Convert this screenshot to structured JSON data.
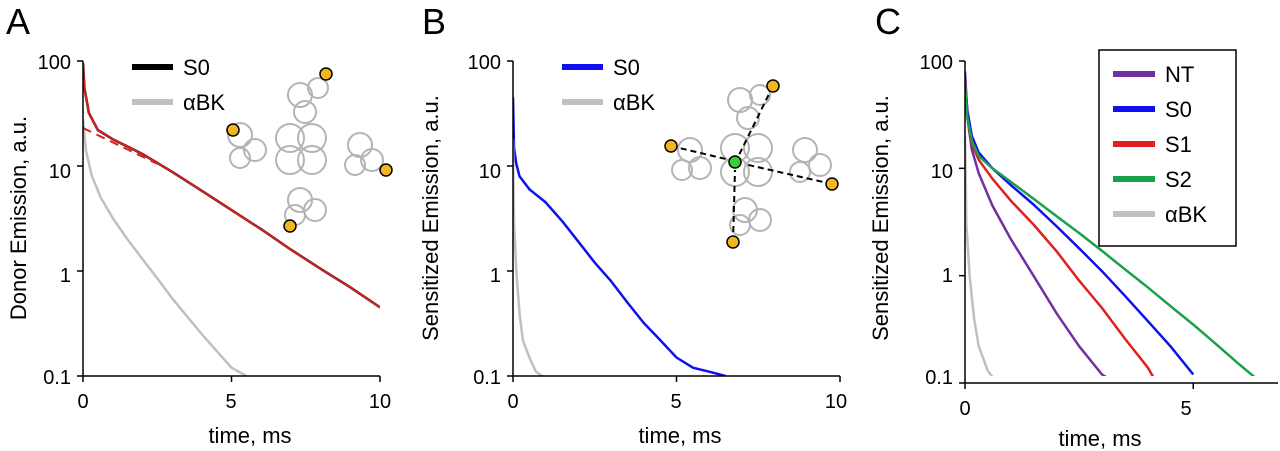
{
  "chart_data": [
    {
      "type": "line",
      "panel_label": "A",
      "xlabel": "time, ms",
      "ylabel": "Donor Emission, a.u.",
      "x_scale": "linear",
      "y_scale": "log",
      "xlim": [
        0,
        10
      ],
      "ylim": [
        0.1,
        100
      ],
      "x_ticks": [
        "0",
        "5",
        "10"
      ],
      "y_ticks": [
        "0.1",
        "1",
        "10",
        "100"
      ],
      "legend_position": "top",
      "series": [
        {
          "name": "S0",
          "color": "#000000",
          "x": [
            0,
            0.05,
            0.2,
            0.5,
            1,
            2,
            3,
            4,
            5,
            6,
            7,
            8,
            9,
            10
          ],
          "values": [
            95,
            55,
            32,
            22,
            18,
            13,
            8.8,
            5.8,
            3.8,
            2.5,
            1.6,
            1.05,
            0.7,
            0.45
          ]
        },
        {
          "name": "αBK",
          "color": "#c0c0c0",
          "x": [
            0,
            0.1,
            0.3,
            0.6,
            1,
            1.5,
            2,
            2.5,
            3,
            4,
            5,
            5.5
          ],
          "values": [
            28,
            14,
            8,
            5,
            3.2,
            2,
            1.3,
            0.85,
            0.55,
            0.25,
            0.12,
            0.1
          ]
        },
        {
          "name": "",
          "color": "#d62020",
          "style": "solid",
          "x": [
            0,
            0.05,
            0.2,
            0.5,
            1,
            2,
            3,
            4,
            5,
            6,
            7,
            8,
            9,
            10
          ],
          "values": [
            95,
            55,
            32,
            22,
            18,
            13,
            8.8,
            5.8,
            3.8,
            2.5,
            1.6,
            1.05,
            0.7,
            0.45
          ]
        },
        {
          "name": "",
          "color": "#d62020",
          "style": "dashed",
          "x": [
            0,
            2.5
          ],
          "values": [
            23,
            10.5
          ]
        }
      ]
    },
    {
      "type": "line",
      "panel_label": "B",
      "xlabel": "time, ms",
      "ylabel": "Sensitized Emission, a.u.",
      "x_scale": "linear",
      "y_scale": "log",
      "xlim": [
        0,
        10
      ],
      "ylim": [
        0.1,
        100
      ],
      "x_ticks": [
        "0",
        "5",
        "10"
      ],
      "y_ticks": [
        "0.1",
        "1",
        "10",
        "100"
      ],
      "legend_position": "top",
      "series": [
        {
          "name": "S0",
          "color": "#1010ee",
          "x": [
            0,
            0.03,
            0.1,
            0.2,
            0.5,
            1,
            1.5,
            2,
            2.5,
            3,
            3.5,
            4,
            4.5,
            5,
            5.5,
            6,
            6.5
          ],
          "values": [
            45,
            15,
            10.5,
            8,
            6,
            4.5,
            3,
            1.9,
            1.2,
            0.8,
            0.5,
            0.32,
            0.22,
            0.15,
            0.12,
            0.11,
            0.1
          ]
        },
        {
          "name": "αBK",
          "color": "#c0c0c0",
          "x": [
            0,
            0.03,
            0.1,
            0.2,
            0.3,
            0.5,
            0.7,
            0.9
          ],
          "values": [
            18,
            3,
            1,
            0.4,
            0.22,
            0.15,
            0.11,
            0.1
          ]
        }
      ]
    },
    {
      "type": "line",
      "panel_label": "C",
      "xlabel": "time, ms",
      "ylabel": "Sensitized Emission, a.u.",
      "x_scale": "linear",
      "y_scale": "log",
      "xlim": [
        0,
        6.9
      ],
      "ylim": [
        0.1,
        100
      ],
      "x_ticks": [
        "0",
        "5"
      ],
      "y_ticks": [
        "0.1",
        "1",
        "10",
        "100"
      ],
      "legend_position": "top-right",
      "series": [
        {
          "name": "NT",
          "color": "#7030a0",
          "x": [
            0,
            0.05,
            0.15,
            0.3,
            0.6,
            1,
            1.5,
            2,
            2.5,
            3,
            3.3
          ],
          "values": [
            80,
            30,
            15,
            9,
            4.5,
            2.2,
            1.0,
            0.45,
            0.22,
            0.12,
            0.1
          ]
        },
        {
          "name": "S0",
          "color": "#1010ee",
          "x": [
            0,
            0.05,
            0.15,
            0.3,
            0.6,
            1,
            1.5,
            2,
            2.5,
            3,
            3.5,
            4,
            4.5,
            5
          ],
          "values": [
            70,
            35,
            20,
            14,
            10,
            7,
            4.6,
            2.9,
            1.8,
            1.1,
            0.65,
            0.38,
            0.22,
            0.12
          ]
        },
        {
          "name": "S1",
          "color": "#e02020",
          "x": [
            0,
            0.05,
            0.15,
            0.3,
            0.6,
            1,
            1.5,
            2,
            2.5,
            3,
            3.5,
            4,
            4.2
          ],
          "values": [
            65,
            30,
            17,
            12,
            8,
            5,
            3,
            1.7,
            0.9,
            0.5,
            0.26,
            0.14,
            0.1
          ]
        },
        {
          "name": "S2",
          "color": "#1aa04a",
          "x": [
            0,
            0.05,
            0.15,
            0.3,
            0.6,
            1,
            1.5,
            2,
            2.5,
            3,
            3.5,
            4,
            4.5,
            5,
            5.5,
            6,
            6.5
          ],
          "values": [
            60,
            30,
            18,
            13,
            10,
            7.5,
            5.2,
            3.6,
            2.5,
            1.7,
            1.15,
            0.78,
            0.52,
            0.35,
            0.23,
            0.15,
            0.1
          ]
        },
        {
          "name": "αBK",
          "color": "#c0c0c0",
          "x": [
            0,
            0.03,
            0.1,
            0.2,
            0.3,
            0.5,
            0.7
          ],
          "values": [
            20,
            3,
            1,
            0.4,
            0.22,
            0.13,
            0.1
          ]
        }
      ]
    }
  ]
}
